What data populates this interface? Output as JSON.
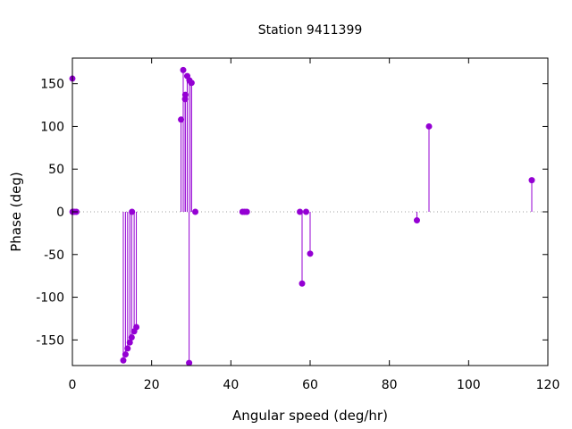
{
  "chart_data": {
    "type": "scatter",
    "style": "impulses-with-points",
    "title": "Station 9411399",
    "xlabel": "Angular speed (deg/hr)",
    "ylabel": "Phase (deg)",
    "xlim": [
      0,
      120
    ],
    "ylim": [
      -180,
      180
    ],
    "xticks": [
      0,
      20,
      40,
      60,
      80,
      100,
      120
    ],
    "yticks": [
      -150,
      -100,
      -50,
      0,
      50,
      100,
      150
    ],
    "zero_line": "dotted",
    "grid": false,
    "series": [
      {
        "color": "#9400d3",
        "points": [
          [
            0.0,
            156
          ],
          [
            0.04,
            0
          ],
          [
            0.08,
            0
          ],
          [
            0.5,
            0
          ],
          [
            1.0,
            0
          ],
          [
            12.85,
            -174
          ],
          [
            13.4,
            -167
          ],
          [
            13.94,
            -160
          ],
          [
            14.49,
            -153
          ],
          [
            14.96,
            -147
          ],
          [
            15.04,
            0
          ],
          [
            15.59,
            -140
          ],
          [
            16.14,
            -135
          ],
          [
            27.42,
            108
          ],
          [
            27.97,
            166
          ],
          [
            28.44,
            132
          ],
          [
            28.51,
            137
          ],
          [
            28.98,
            159
          ],
          [
            29.46,
            -177
          ],
          [
            29.53,
            154
          ],
          [
            30.0,
            151
          ],
          [
            30.08,
            151
          ],
          [
            31.02,
            0
          ],
          [
            42.93,
            0
          ],
          [
            43.48,
            0
          ],
          [
            44.03,
            0
          ],
          [
            57.42,
            0
          ],
          [
            57.97,
            -84
          ],
          [
            58.98,
            0
          ],
          [
            60.0,
            -49
          ],
          [
            86.95,
            -10
          ],
          [
            90.0,
            100
          ],
          [
            115.94,
            37
          ]
        ]
      }
    ]
  }
}
